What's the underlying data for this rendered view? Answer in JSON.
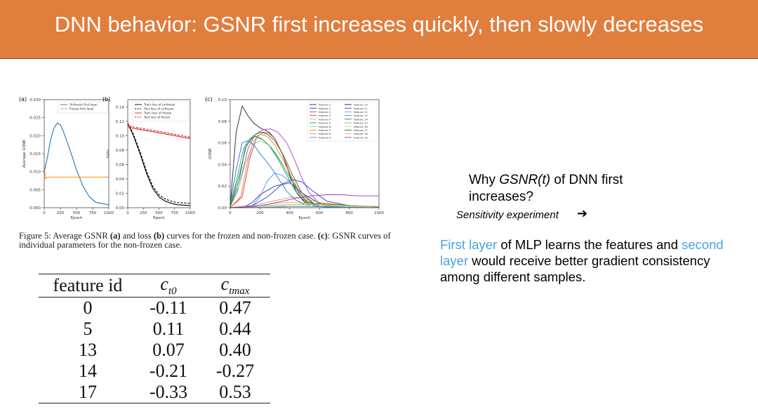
{
  "slide": {
    "title": "DNN behavior: GSNR first increases quickly, then slowly decreases",
    "question_pre": "Why ",
    "question_italic": "GSNR(t)",
    "question_post": " of DNN first increases?",
    "sensitivity": "Sensitivity experiment",
    "arrow": "➔",
    "answer_part1": "First layer",
    "answer_part2": " of MLP learns the features and ",
    "answer_part3": "second layer",
    "answer_part4": " would receive better gradient consistency among different samples.",
    "colors": {
      "title_bg": "#e07e3e",
      "highlight": "#4aa3e0"
    }
  },
  "caption": {
    "fig": "Figure 5:",
    "t1": " Average GSNR ",
    "a": "(a)",
    "t2": " and loss ",
    "b": "(b)",
    "t3": " curves for the frozen and non-frozen case. ",
    "c": "(c)",
    "t4": ": GSNR curves of individual parameters for the non-frozen case."
  },
  "table": {
    "headers": [
      "feature id",
      "c",
      "t0",
      "c",
      "tmax"
    ],
    "rows": [
      [
        "0",
        "-0.11",
        "0.47"
      ],
      [
        "5",
        "0.11",
        "0.44"
      ],
      [
        "13",
        "0.07",
        "0.40"
      ],
      [
        "14",
        "-0.21",
        "-0.27"
      ],
      [
        "17",
        "-0.33",
        "0.53"
      ]
    ]
  },
  "chart_data": [
    {
      "type": "line",
      "panel": "(a)",
      "xlabel": "Epoch",
      "ylabel": "Average GSNR",
      "xlim": [
        0,
        1000
      ],
      "ylim": [
        0,
        0.03
      ],
      "xticks": [
        "0",
        "250",
        "500",
        "750",
        "1000"
      ],
      "yticks": [
        "0.000",
        "0.005",
        "0.010",
        "0.015",
        "0.020",
        "0.025",
        "0.030"
      ],
      "legend": "top-right",
      "series": [
        {
          "name": "Unfreeze first layer",
          "color": "#1f77b4",
          "x": [
            0,
            50,
            100,
            150,
            200,
            250,
            300,
            400,
            500,
            600,
            700,
            800,
            1000
          ],
          "y": [
            0.01,
            0.014,
            0.019,
            0.022,
            0.0235,
            0.023,
            0.021,
            0.016,
            0.0105,
            0.006,
            0.003,
            0.0015,
            0.0008
          ]
        },
        {
          "name": "Freeze first layer",
          "color": "#ff9a1e",
          "x": [
            0,
            20,
            50,
            100,
            300,
            600,
            1000
          ],
          "y": [
            0.011,
            0.008,
            0.0085,
            0.0085,
            0.0085,
            0.0085,
            0.0085
          ]
        }
      ]
    },
    {
      "type": "line",
      "panel": "(b)",
      "xlabel": "Epoch",
      "ylabel": "Loss",
      "xlim": [
        0,
        1000
      ],
      "ylim": [
        0,
        0.15
      ],
      "xticks": [
        "0",
        "250",
        "500",
        "750",
        "1000"
      ],
      "yticks": [
        "0.00",
        "0.02",
        "0.04",
        "0.06",
        "0.08",
        "0.10",
        "0.12",
        "0.14"
      ],
      "legend": "top-right",
      "series": [
        {
          "name": "Train loss of unfreeze",
          "color": "#000000",
          "dash": false,
          "x": [
            0,
            50,
            100,
            200,
            300,
            400,
            500,
            600,
            700,
            800,
            1000
          ],
          "y": [
            0.115,
            0.108,
            0.098,
            0.074,
            0.048,
            0.027,
            0.015,
            0.009,
            0.006,
            0.004,
            0.003
          ]
        },
        {
          "name": "Test loss of unfreeze",
          "color": "#000000",
          "dash": true,
          "x": [
            0,
            50,
            100,
            200,
            300,
            400,
            500,
            600,
            700,
            800,
            1000
          ],
          "y": [
            0.117,
            0.11,
            0.1,
            0.077,
            0.051,
            0.03,
            0.018,
            0.012,
            0.009,
            0.007,
            0.006
          ]
        },
        {
          "name": "Train loss of freeze",
          "color": "#e01a1a",
          "dash": false,
          "x": [
            0,
            20,
            100,
            500,
            1000
          ],
          "y": [
            0.116,
            0.112,
            0.11,
            0.104,
            0.096
          ]
        },
        {
          "name": "Test loss of freeze",
          "color": "#e01a1a",
          "dash": true,
          "x": [
            0,
            20,
            100,
            500,
            1000
          ],
          "y": [
            0.118,
            0.114,
            0.112,
            0.106,
            0.098
          ]
        }
      ]
    },
    {
      "type": "line",
      "panel": "(c)",
      "xlabel": "Epoch",
      "ylabel": "GSNR",
      "xlim": [
        0,
        1000
      ],
      "ylim": [
        0,
        0.1
      ],
      "xticks": [
        "0",
        "200",
        "400",
        "600",
        "800",
        "1000"
      ],
      "yticks": [
        "0.00",
        "0.02",
        "0.04",
        "0.06",
        "0.08",
        "0.10"
      ],
      "legend": "top-right",
      "series": [
        {
          "name": "feature 0",
          "color": "#222222",
          "x": [
            0,
            40,
            80,
            120,
            160,
            200,
            260,
            300,
            350,
            400,
            450,
            500,
            600,
            700,
            1000
          ],
          "y": [
            0.002,
            0.07,
            0.094,
            0.085,
            0.078,
            0.074,
            0.07,
            0.064,
            0.05,
            0.03,
            0.013,
            0.005,
            0.001,
            0.0005,
            0.0003
          ]
        },
        {
          "name": "feature 1",
          "color": "#2e2ebd",
          "x": [
            0,
            50,
            100,
            150,
            200,
            300,
            400,
            500,
            600,
            700,
            1000
          ],
          "y": [
            0.0,
            0.0,
            0.001,
            0.005,
            0.012,
            0.02,
            0.023,
            0.012,
            0.004,
            0.001,
            0.0005
          ]
        },
        {
          "name": "feature 2",
          "color": "#9a44e6",
          "x": [
            0,
            60,
            120,
            170,
            220,
            270,
            320,
            380,
            430,
            480,
            530,
            600,
            700,
            1000
          ],
          "y": [
            0.001,
            0.02,
            0.055,
            0.068,
            0.072,
            0.073,
            0.07,
            0.06,
            0.045,
            0.028,
            0.014,
            0.004,
            0.001,
            0.0005
          ]
        },
        {
          "name": "feature 3",
          "color": "#e03a3a",
          "x": [
            0,
            80,
            130,
            180,
            220,
            260,
            300,
            350,
            400,
            450,
            500,
            600,
            1000
          ],
          "y": [
            0.0,
            0.01,
            0.045,
            0.066,
            0.07,
            0.069,
            0.064,
            0.05,
            0.032,
            0.017,
            0.007,
            0.002,
            0.0005
          ]
        },
        {
          "name": "feature 4",
          "color": "#f0a94f",
          "x": [
            0,
            100,
            200,
            300,
            400,
            500,
            600,
            800,
            1000
          ],
          "y": [
            0.0,
            0.0005,
            0.002,
            0.004,
            0.005,
            0.004,
            0.003,
            0.001,
            0.0005
          ]
        },
        {
          "name": "feature 5",
          "color": "#1a9a94",
          "x": [
            0,
            60,
            110,
            160,
            220,
            280,
            340,
            400,
            460,
            520,
            600,
            1000
          ],
          "y": [
            0.002,
            0.03,
            0.058,
            0.066,
            0.063,
            0.055,
            0.043,
            0.028,
            0.014,
            0.006,
            0.002,
            0.0005
          ]
        },
        {
          "name": "feature 6",
          "color": "#8fd18f",
          "x": [
            0,
            50,
            100,
            150,
            200,
            260,
            320,
            380,
            440,
            500,
            600,
            1000
          ],
          "y": [
            0.001,
            0.015,
            0.04,
            0.058,
            0.062,
            0.058,
            0.045,
            0.03,
            0.015,
            0.006,
            0.002,
            0.0005
          ]
        },
        {
          "name": "feature 7",
          "color": "#f08030",
          "x": [
            0,
            70,
            120,
            160,
            200,
            250,
            300,
            360,
            420,
            480,
            560,
            1000
          ],
          "y": [
            0.0,
            0.01,
            0.045,
            0.062,
            0.068,
            0.066,
            0.058,
            0.043,
            0.026,
            0.012,
            0.004,
            0.0005
          ]
        },
        {
          "name": "feature 8",
          "color": "#c8a060",
          "x": [
            0,
            150,
            250,
            350,
            420,
            500,
            600,
            800,
            1000
          ],
          "y": [
            0.0,
            0.002,
            0.005,
            0.008,
            0.01,
            0.008,
            0.005,
            0.002,
            0.001
          ]
        },
        {
          "name": "feature 9",
          "color": "#5b8ed6",
          "x": [
            0,
            100,
            150,
            200,
            250,
            300,
            350,
            400,
            450,
            500,
            600,
            1000
          ],
          "y": [
            0.0,
            0.0005,
            0.002,
            0.01,
            0.025,
            0.032,
            0.03,
            0.024,
            0.014,
            0.006,
            0.002,
            0.0005
          ]
        },
        {
          "name": "feature 10",
          "color": "#1c1c1c",
          "x": [
            0,
            200,
            400,
            600,
            800,
            1000
          ],
          "y": [
            0.0,
            0.0005,
            0.001,
            0.001,
            0.0005,
            0.0003
          ]
        },
        {
          "name": "feature 11",
          "color": "#3c3cd0",
          "x": [
            0,
            150,
            250,
            350,
            420,
            480,
            550,
            650,
            800,
            1000
          ],
          "y": [
            0.0,
            0.002,
            0.01,
            0.022,
            0.026,
            0.024,
            0.016,
            0.006,
            0.002,
            0.001
          ]
        },
        {
          "name": "feature 12",
          "color": "#60b0e8",
          "x": [
            0,
            200,
            400,
            600,
            800,
            1000
          ],
          "y": [
            0.0,
            0.0005,
            0.001,
            0.001,
            0.0005,
            0.0003
          ]
        },
        {
          "name": "feature 13",
          "color": "#36a856",
          "x": [
            0,
            50,
            90,
            130,
            170,
            210,
            260,
            320,
            380,
            440,
            500,
            600,
            1000
          ],
          "y": [
            0.002,
            0.03,
            0.055,
            0.064,
            0.066,
            0.064,
            0.058,
            0.046,
            0.03,
            0.015,
            0.006,
            0.002,
            0.0005
          ]
        },
        {
          "name": "feature 14",
          "color": "#2b6fd6",
          "x": [
            0,
            40,
            80,
            120,
            160,
            200,
            260,
            320,
            380,
            440,
            500,
            600,
            1000
          ],
          "y": [
            0.003,
            0.035,
            0.06,
            0.062,
            0.058,
            0.05,
            0.04,
            0.028,
            0.015,
            0.007,
            0.003,
            0.001,
            0.0005
          ]
        },
        {
          "name": "feature 15",
          "color": "#a6b84a",
          "x": [
            0,
            200,
            400,
            600,
            800,
            1000
          ],
          "y": [
            0.0,
            0.001,
            0.002,
            0.002,
            0.001,
            0.0005
          ]
        },
        {
          "name": "feature 16",
          "color": "#b0e0b0",
          "x": [
            0,
            200,
            400,
            600,
            800,
            1000
          ],
          "y": [
            0.0,
            0.001,
            0.002,
            0.002,
            0.001,
            0.0005
          ]
        },
        {
          "name": "feature 17",
          "color": "#1a7a1a",
          "x": [
            0,
            60,
            100,
            150,
            200,
            250,
            300,
            360,
            420,
            480,
            560,
            1000
          ],
          "y": [
            0.001,
            0.025,
            0.055,
            0.066,
            0.07,
            0.068,
            0.062,
            0.048,
            0.03,
            0.014,
            0.004,
            0.0005
          ]
        },
        {
          "name": "feature 18",
          "color": "#f0b070",
          "x": [
            0,
            200,
            400,
            600,
            800,
            1000
          ],
          "y": [
            0.0,
            0.002,
            0.003,
            0.003,
            0.002,
            0.001
          ]
        },
        {
          "name": "feature 19",
          "color": "#a030c0",
          "x": [
            0,
            150,
            250,
            350,
            450,
            550,
            650,
            750,
            850,
            1000
          ],
          "y": [
            0.0,
            0.001,
            0.003,
            0.006,
            0.009,
            0.011,
            0.012,
            0.012,
            0.011,
            0.011
          ]
        }
      ]
    }
  ]
}
